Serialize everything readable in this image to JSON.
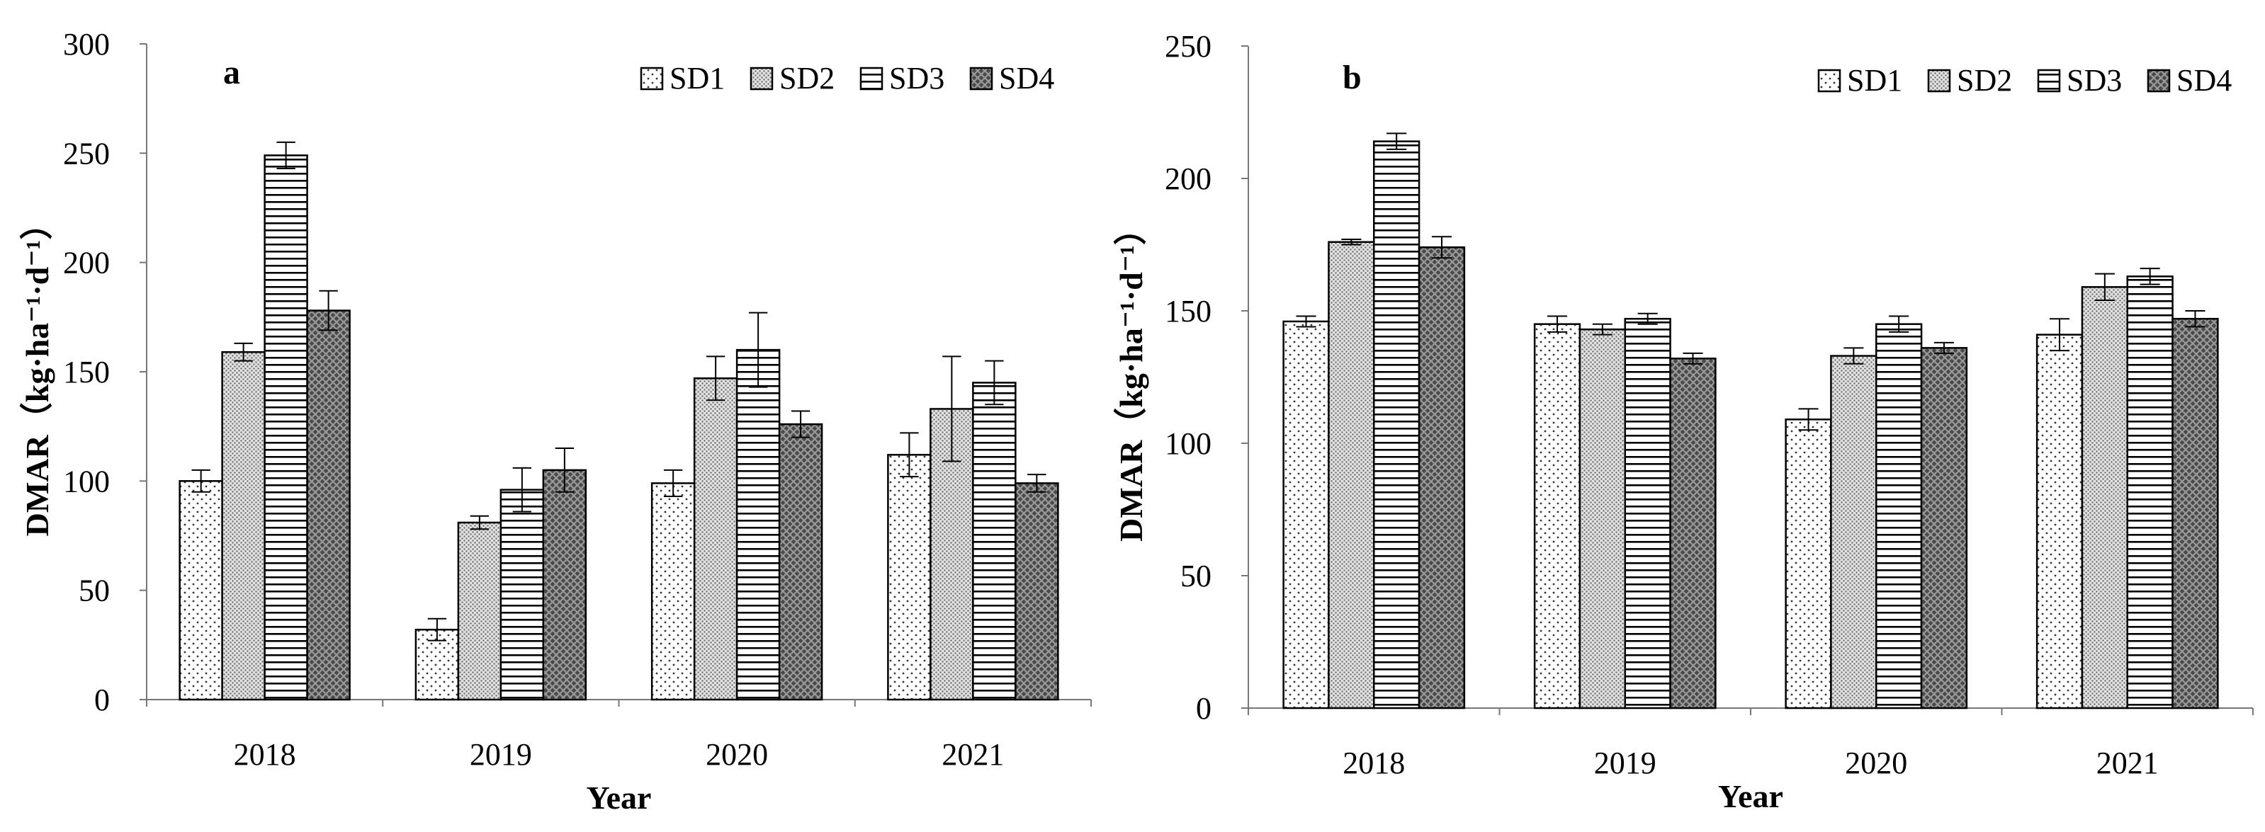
{
  "chart_data": [
    {
      "panel": "a",
      "type": "bar",
      "categories": [
        "2018",
        "2019",
        "2020",
        "2021"
      ],
      "series": [
        {
          "name": "SD1",
          "pattern": "dots",
          "values": [
            100,
            32,
            99,
            112
          ],
          "errors": [
            5,
            5,
            6,
            10
          ]
        },
        {
          "name": "SD2",
          "pattern": "fine-dots",
          "values": [
            159,
            81,
            147,
            133
          ],
          "errors": [
            4,
            3,
            10,
            24
          ]
        },
        {
          "name": "SD3",
          "pattern": "horizontal-lines",
          "values": [
            249,
            96,
            160,
            145
          ],
          "errors": [
            6,
            10,
            17,
            10
          ]
        },
        {
          "name": "SD4",
          "pattern": "crosshatch",
          "values": [
            178,
            105,
            126,
            99
          ],
          "errors": [
            9,
            10,
            6,
            4
          ]
        }
      ],
      "xlabel": "Year",
      "ylabel": "DMAR（kg·ha⁻¹·d⁻¹）",
      "ylim": [
        0,
        300
      ],
      "yticks": [
        0,
        50,
        100,
        150,
        200,
        250,
        300
      ],
      "legend": "top-right"
    },
    {
      "panel": "b",
      "type": "bar",
      "categories": [
        "2018",
        "2019",
        "2020",
        "2021"
      ],
      "series": [
        {
          "name": "SD1",
          "pattern": "dots",
          "values": [
            146,
            145,
            109,
            141
          ],
          "errors": [
            2,
            3,
            4,
            6
          ]
        },
        {
          "name": "SD2",
          "pattern": "fine-dots",
          "values": [
            176,
            143,
            133,
            159
          ],
          "errors": [
            1,
            2,
            3,
            5
          ]
        },
        {
          "name": "SD3",
          "pattern": "horizontal-lines",
          "values": [
            214,
            147,
            145,
            163
          ],
          "errors": [
            3,
            2,
            3,
            3
          ]
        },
        {
          "name": "SD4",
          "pattern": "crosshatch",
          "values": [
            174,
            132,
            136,
            147
          ],
          "errors": [
            4,
            2,
            2,
            3
          ]
        }
      ],
      "xlabel": "Year",
      "ylabel": "DMAR（kg·ha⁻¹·d⁻¹）",
      "ylim": [
        0,
        250
      ],
      "yticks": [
        0,
        50,
        100,
        150,
        200,
        250
      ],
      "legend": "top-right"
    }
  ]
}
